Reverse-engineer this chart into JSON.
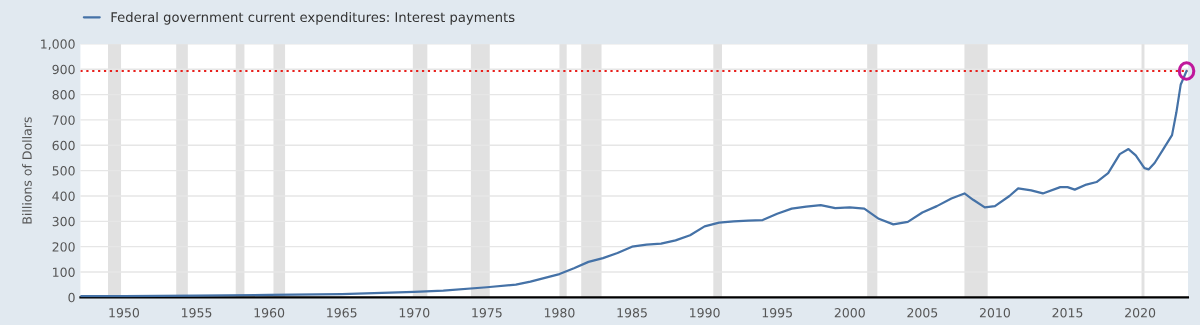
{
  "chart_data": {
    "type": "line",
    "ylabel": "Billions of Dollars",
    "x": [
      1947,
      1950,
      1955,
      1960,
      1965,
      1970,
      1972,
      1975,
      1977,
      1978,
      1980,
      1981,
      1982,
      1983,
      1984,
      1985,
      1986,
      1987,
      1988,
      1989,
      1990,
      1991,
      1992,
      1993,
      1994,
      1995,
      1996,
      1997,
      1998,
      1999,
      2000,
      2001,
      2002,
      2003,
      2004,
      2005,
      2006,
      2007,
      2007.9,
      2008.5,
      2009.3,
      2010,
      2011,
      2011.6,
      2012.5,
      2013.3,
      2014.5,
      2015,
      2015.5,
      2016.3,
      2017,
      2017.8,
      2018.6,
      2019.2,
      2019.7,
      2020.3,
      2020.6,
      2021,
      2021.6,
      2022.2,
      2022.5,
      2022.8,
      2023.2
    ],
    "series": [
      {
        "name": "Federal government current expenditures: Interest payments",
        "color": "#4572a7",
        "values": [
          4.5,
          5,
          6.5,
          10,
          13,
          22,
          27,
          40,
          50,
          62,
          92,
          115,
          140,
          155,
          175,
          200,
          208,
          212,
          225,
          245,
          280,
          295,
          300,
          303,
          305,
          330,
          350,
          358,
          364,
          352,
          355,
          350,
          310,
          288,
          298,
          335,
          360,
          390,
          410,
          385,
          355,
          360,
          400,
          430,
          422,
          410,
          435,
          435,
          425,
          445,
          455,
          490,
          565,
          585,
          560,
          510,
          505,
          530,
          585,
          640,
          730,
          840,
          893
        ]
      }
    ],
    "xlim": [
      1947,
      2023.3
    ],
    "xticks": [
      1950,
      1955,
      1960,
      1965,
      1970,
      1975,
      1980,
      1985,
      1990,
      1995,
      2000,
      2005,
      2010,
      2015,
      2020
    ],
    "ylim": [
      0,
      1000
    ],
    "yticks": [
      0,
      100,
      200,
      300,
      400,
      500,
      600,
      700,
      800,
      900,
      {
        "value": 1000,
        "label": "1,000"
      }
    ],
    "grid": "y",
    "legend": "top left",
    "line_style": "solid",
    "marker": "none",
    "ref_lines": [
      {
        "axis": "y",
        "value": 893,
        "color": "#e8201c",
        "line_style": "dotted"
      }
    ],
    "bands": [
      {
        "axis": "x",
        "from": 1948.9,
        "to": 1949.8,
        "color": "#e1e1e1"
      },
      {
        "axis": "x",
        "from": 1953.6,
        "to": 1954.4,
        "color": "#e1e1e1"
      },
      {
        "axis": "x",
        "from": 1957.7,
        "to": 1958.3,
        "color": "#e1e1e1"
      },
      {
        "axis": "x",
        "from": 1960.3,
        "to": 1961.1,
        "color": "#e1e1e1"
      },
      {
        "axis": "x",
        "from": 1969.9,
        "to": 1970.9,
        "color": "#e1e1e1"
      },
      {
        "axis": "x",
        "from": 1973.9,
        "to": 1975.2,
        "color": "#e1e1e1"
      },
      {
        "axis": "x",
        "from": 1980.0,
        "to": 1980.5,
        "color": "#e1e1e1"
      },
      {
        "axis": "x",
        "from": 1981.5,
        "to": 1982.9,
        "color": "#e1e1e1"
      },
      {
        "axis": "x",
        "from": 1990.6,
        "to": 1991.2,
        "color": "#e1e1e1"
      },
      {
        "axis": "x",
        "from": 2001.2,
        "to": 2001.9,
        "color": "#e1e1e1"
      },
      {
        "axis": "x",
        "from": 2007.9,
        "to": 2009.5,
        "color": "#e1e1e1"
      },
      {
        "axis": "x",
        "from": 2020.1,
        "to": 2020.3,
        "color": "#e1e1e1"
      }
    ]
  }
}
